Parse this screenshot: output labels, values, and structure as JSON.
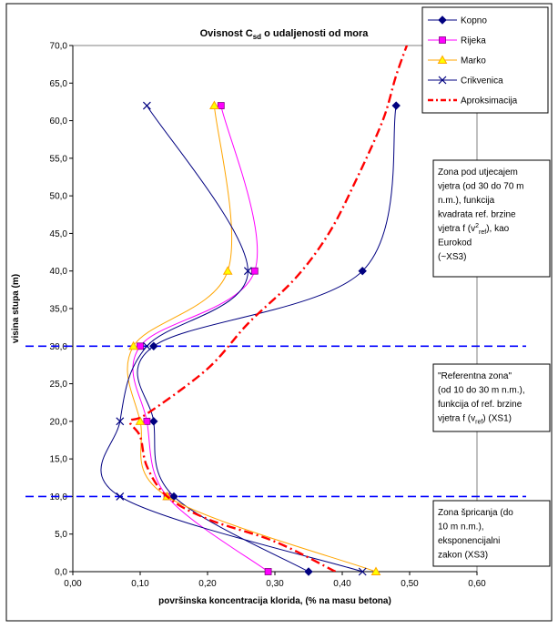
{
  "chart_data": {
    "type": "line",
    "title": {
      "main": "Ovisnost C",
      "sub": "sd",
      "rest": " o udaljenosti od mora"
    },
    "xlabel": "površinska koncentracija klorida, (% na masu betona)",
    "ylabel": "visina stupa (m)",
    "xlim": [
      0,
      0.6
    ],
    "ylim": [
      0,
      70
    ],
    "x_ticks": [
      0,
      0.1,
      0.2,
      0.3,
      0.4,
      0.5,
      0.6
    ],
    "x_tick_labels": [
      "0,00",
      "0,10",
      "0,20",
      "0,30",
      "0,40",
      "0,50",
      "0,60"
    ],
    "y_ticks": [
      0,
      5,
      10,
      15,
      20,
      25,
      30,
      35,
      40,
      45,
      50,
      55,
      60,
      65,
      70
    ],
    "y_tick_labels": [
      "0,0",
      "5,0",
      "10,0",
      "15,0",
      "20,0",
      "25,0",
      "30,0",
      "35,0",
      "40,0",
      "45,0",
      "50,0",
      "55,0",
      "60,0",
      "65,0",
      "70,0"
    ],
    "series": [
      {
        "name": "Kopno",
        "color": "#000080",
        "marker": "diamond",
        "points": [
          [
            0.35,
            0
          ],
          [
            0.15,
            10
          ],
          [
            0.12,
            20
          ],
          [
            0.12,
            30
          ],
          [
            0.43,
            40
          ],
          [
            0.48,
            62
          ]
        ]
      },
      {
        "name": "Rijeka",
        "color": "#ff00ff",
        "marker": "square",
        "points": [
          [
            0.29,
            0
          ],
          [
            0.14,
            10
          ],
          [
            0.11,
            20
          ],
          [
            0.1,
            30
          ],
          [
            0.27,
            40
          ],
          [
            0.22,
            62
          ]
        ]
      },
      {
        "name": "Marko",
        "color": "#ffa500",
        "marker": "triangle",
        "points": [
          [
            0.45,
            0
          ],
          [
            0.14,
            10
          ],
          [
            0.1,
            20
          ],
          [
            0.09,
            30
          ],
          [
            0.23,
            40
          ],
          [
            0.21,
            62
          ]
        ]
      },
      {
        "name": "Crikvenica",
        "color": "#000080",
        "marker": "x",
        "points": [
          [
            0.43,
            0
          ],
          [
            0.07,
            10
          ],
          [
            0.07,
            20
          ],
          [
            0.11,
            30
          ],
          [
            0.26,
            40
          ],
          [
            0.11,
            62
          ]
        ]
      },
      {
        "name": "Aproksimacija",
        "color": "#ff0000",
        "marker": "none",
        "dash": true,
        "points": [
          [
            0.39,
            0
          ],
          [
            0.3,
            4
          ],
          [
            0.2,
            7
          ],
          [
            0.14,
            10
          ],
          [
            0.11,
            14
          ],
          [
            0.1,
            18
          ],
          [
            0.085,
            20
          ],
          [
            0.11,
            21
          ],
          [
            0.2,
            27
          ],
          [
            0.26,
            33
          ],
          [
            0.33,
            39
          ],
          [
            0.38,
            45
          ],
          [
            0.42,
            52
          ],
          [
            0.46,
            60
          ],
          [
            0.48,
            66
          ],
          [
            0.5,
            71
          ]
        ]
      }
    ],
    "reference_lines_y": [
      10,
      30
    ],
    "reference_line_color": "#0000ff",
    "legend_position": "top-right",
    "annotations": [
      {
        "id": "zone-wind",
        "lines": [
          {
            "t": "Zona pod utjecajem"
          },
          {
            "t": "vjetra (od 30 do 70 m"
          },
          {
            "t": "n.m.), funkcija"
          },
          {
            "t": "kvadrata ref. brzine"
          },
          {
            "t": "vjetra f (v",
            "sup": "2",
            "sub": "ref",
            "after": "), kao"
          },
          {
            "t": "Eurokod"
          },
          {
            "t": "(~XS3)"
          }
        ]
      },
      {
        "id": "zone-reference",
        "lines": [
          {
            "t": "\"Referentna zona\""
          },
          {
            "t": "(od 10 do 30 m n.m.),"
          },
          {
            "t": "funkcija of ref. brzine"
          },
          {
            "t": "vjetra f (v",
            "sub": "ref",
            "after": ") (XS1)"
          }
        ]
      },
      {
        "id": "zone-splash",
        "lines": [
          {
            "t": "Zona špricanja (do"
          },
          {
            "t": "10 m n.m.),"
          },
          {
            "t": "eksponencijalni"
          },
          {
            "t": "zakon (XS3)"
          }
        ]
      }
    ]
  }
}
